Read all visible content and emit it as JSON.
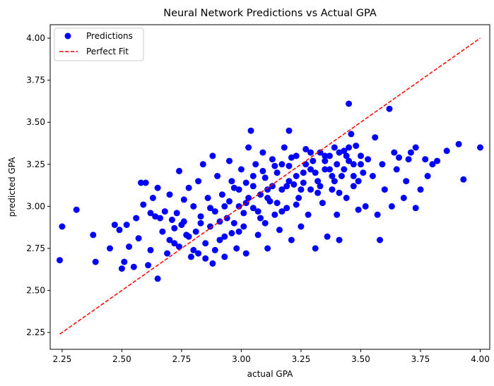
{
  "chart_data": {
    "type": "scatter",
    "title": "Neural Network Predictions vs Actual GPA",
    "xlabel": "actual GPA",
    "ylabel": "predicted GPA",
    "xlim": [
      2.2,
      4.04
    ],
    "ylim": [
      2.15,
      4.08
    ],
    "x_ticks": [
      "2.25",
      "2.50",
      "2.75",
      "3.00",
      "3.25",
      "3.50",
      "3.75",
      "4.00"
    ],
    "y_ticks": [
      "2.25",
      "2.50",
      "2.75",
      "3.00",
      "3.25",
      "3.50",
      "3.75",
      "4.00"
    ],
    "grid": false,
    "legend_placement": "top-left",
    "legend": [
      "Predictions",
      "Perfect Fit"
    ],
    "perfect_fit": {
      "x": [
        2.24,
        4.0
      ],
      "y": [
        2.24,
        4.0
      ],
      "color": "#ff0000",
      "style": "dashed"
    },
    "point_color": "#0000ff",
    "series": [
      {
        "name": "Predictions",
        "points": [
          [
            2.24,
            2.68
          ],
          [
            2.25,
            2.88
          ],
          [
            2.31,
            2.98
          ],
          [
            2.38,
            2.83
          ],
          [
            2.39,
            2.67
          ],
          [
            2.45,
            2.75
          ],
          [
            2.47,
            2.89
          ],
          [
            2.49,
            2.86
          ],
          [
            2.5,
            2.63
          ],
          [
            2.51,
            2.67
          ],
          [
            2.52,
            2.89
          ],
          [
            2.53,
            2.76
          ],
          [
            2.55,
            2.64
          ],
          [
            2.56,
            2.93
          ],
          [
            2.57,
            2.81
          ],
          [
            2.58,
            3.14
          ],
          [
            2.59,
            3.01
          ],
          [
            2.6,
            3.14
          ],
          [
            2.61,
            2.65
          ],
          [
            2.62,
            2.74
          ],
          [
            2.62,
            2.96
          ],
          [
            2.63,
            3.05
          ],
          [
            2.64,
            2.94
          ],
          [
            2.65,
            2.57
          ],
          [
            2.65,
            3.11
          ],
          [
            2.66,
            2.93
          ],
          [
            2.67,
            2.85
          ],
          [
            2.68,
            2.97
          ],
          [
            2.69,
            2.72
          ],
          [
            2.7,
            3.07
          ],
          [
            2.71,
            2.92
          ],
          [
            2.72,
            2.78
          ],
          [
            2.73,
            2.96
          ],
          [
            2.74,
            3.21
          ],
          [
            2.75,
            2.89
          ],
          [
            2.76,
            3.04
          ],
          [
            2.77,
            2.83
          ],
          [
            2.78,
            3.11
          ],
          [
            2.79,
            2.7
          ],
          [
            2.8,
            3.0
          ],
          [
            2.81,
            2.85
          ],
          [
            2.82,
            3.15
          ],
          [
            2.82,
            2.72
          ],
          [
            2.83,
            2.94
          ],
          [
            2.84,
            3.25
          ],
          [
            2.85,
            2.78
          ],
          [
            2.86,
            3.05
          ],
          [
            2.87,
            2.88
          ],
          [
            2.88,
            3.3
          ],
          [
            2.88,
            2.66
          ],
          [
            2.89,
            2.97
          ],
          [
            2.9,
            3.18
          ],
          [
            2.91,
            2.8
          ],
          [
            2.92,
            3.07
          ],
          [
            2.93,
            2.7
          ],
          [
            2.94,
            2.93
          ],
          [
            2.95,
            3.27
          ],
          [
            2.96,
            2.84
          ],
          [
            2.97,
            3.11
          ],
          [
            2.98,
            2.75
          ],
          [
            2.99,
            3.0
          ],
          [
            3.0,
            3.22
          ],
          [
            3.01,
            2.88
          ],
          [
            3.02,
            3.14
          ],
          [
            3.02,
            2.72
          ],
          [
            3.03,
            3.35
          ],
          [
            3.04,
            3.45
          ],
          [
            3.05,
            2.99
          ],
          [
            3.06,
            3.25
          ],
          [
            3.07,
            2.83
          ],
          [
            3.08,
            3.07
          ],
          [
            3.09,
            3.32
          ],
          [
            3.1,
            2.9
          ],
          [
            3.1,
            3.17
          ],
          [
            3.11,
            2.75
          ],
          [
            3.12,
            3.03
          ],
          [
            3.13,
            3.28
          ],
          [
            3.14,
            2.95
          ],
          [
            3.15,
            3.2
          ],
          [
            3.16,
            2.86
          ],
          [
            3.17,
            3.1
          ],
          [
            3.18,
            3.35
          ],
          [
            3.19,
            2.99
          ],
          [
            3.2,
            3.45
          ],
          [
            3.2,
            3.24
          ],
          [
            3.21,
            2.8
          ],
          [
            3.22,
            3.13
          ],
          [
            3.23,
            3.3
          ],
          [
            3.24,
            3.05
          ],
          [
            3.25,
            2.88
          ],
          [
            3.26,
            3.2
          ],
          [
            3.27,
            3.34
          ],
          [
            3.28,
            2.95
          ],
          [
            3.29,
            3.1
          ],
          [
            3.3,
            3.27
          ],
          [
            3.31,
            2.75
          ],
          [
            3.32,
            3.15
          ],
          [
            3.33,
            3.32
          ],
          [
            3.34,
            3.02
          ],
          [
            3.35,
            3.22
          ],
          [
            3.36,
            2.82
          ],
          [
            3.37,
            3.3
          ],
          [
            3.38,
            3.1
          ],
          [
            3.39,
            3.35
          ],
          [
            3.4,
            2.95
          ],
          [
            3.4,
            3.25
          ],
          [
            3.41,
            2.8
          ],
          [
            3.42,
            3.18
          ],
          [
            3.43,
            3.33
          ],
          [
            3.44,
            3.05
          ],
          [
            3.45,
            3.61
          ],
          [
            3.45,
            3.27
          ],
          [
            3.46,
            3.43
          ],
          [
            3.47,
            3.12
          ],
          [
            3.48,
            3.36
          ],
          [
            3.49,
            2.98
          ],
          [
            3.5,
            3.3
          ],
          [
            3.51,
            3.2
          ],
          [
            3.52,
            3.0
          ],
          [
            3.53,
            3.28
          ],
          [
            3.55,
            3.18
          ],
          [
            3.56,
            3.41
          ],
          [
            3.57,
            2.95
          ],
          [
            3.58,
            2.8
          ],
          [
            3.59,
            3.25
          ],
          [
            3.6,
            3.1
          ],
          [
            3.62,
            3.58
          ],
          [
            3.63,
            3.0
          ],
          [
            3.64,
            3.32
          ],
          [
            3.65,
            3.22
          ],
          [
            3.66,
            3.29
          ],
          [
            3.68,
            3.05
          ],
          [
            3.69,
            3.15
          ],
          [
            3.7,
            3.28
          ],
          [
            3.71,
            3.32
          ],
          [
            3.73,
            2.99
          ],
          [
            3.73,
            3.35
          ],
          [
            3.75,
            3.1
          ],
          [
            3.77,
            3.28
          ],
          [
            3.78,
            3.18
          ],
          [
            3.8,
            3.25
          ],
          [
            3.82,
            3.27
          ],
          [
            3.86,
            3.33
          ],
          [
            3.91,
            3.37
          ],
          [
            3.93,
            3.16
          ],
          [
            4.0,
            3.35
          ],
          [
            2.7,
            2.8
          ],
          [
            2.72,
            2.87
          ],
          [
            2.74,
            2.76
          ],
          [
            2.76,
            2.91
          ],
          [
            2.78,
            2.82
          ],
          [
            2.8,
            2.74
          ],
          [
            2.83,
            2.9
          ],
          [
            2.85,
            2.69
          ],
          [
            2.87,
            2.99
          ],
          [
            2.89,
            2.74
          ],
          [
            2.91,
            2.91
          ],
          [
            2.93,
            2.82
          ],
          [
            2.95,
            3.03
          ],
          [
            2.97,
            2.9
          ],
          [
            2.99,
            3.1
          ],
          [
            3.01,
            2.96
          ],
          [
            3.03,
            3.05
          ],
          [
            3.05,
            3.12
          ],
          [
            3.07,
            2.97
          ],
          [
            3.09,
            3.21
          ],
          [
            3.11,
            3.05
          ],
          [
            3.13,
            3.12
          ],
          [
            3.15,
            3.02
          ],
          [
            3.17,
            3.25
          ],
          [
            3.19,
            3.12
          ],
          [
            3.21,
            3.29
          ],
          [
            3.23,
            3.18
          ],
          [
            3.25,
            3.1
          ],
          [
            3.27,
            3.25
          ],
          [
            3.29,
            3.32
          ],
          [
            3.31,
            3.2
          ],
          [
            3.33,
            3.12
          ],
          [
            3.35,
            3.3
          ],
          [
            3.37,
            3.22
          ],
          [
            3.39,
            3.15
          ],
          [
            3.41,
            3.32
          ],
          [
            3.43,
            3.22
          ],
          [
            3.45,
            3.35
          ],
          [
            3.47,
            3.25
          ],
          [
            3.49,
            3.15
          ],
          [
            2.93,
            3.0
          ],
          [
            2.96,
            3.15
          ],
          [
            2.99,
            2.85
          ],
          [
            3.02,
            3.02
          ],
          [
            3.05,
            3.18
          ],
          [
            3.08,
            2.93
          ],
          [
            3.11,
            3.1
          ],
          [
            3.14,
            3.24
          ],
          [
            3.17,
            2.97
          ],
          [
            3.2,
            3.15
          ],
          [
            3.23,
            3.01
          ],
          [
            3.26,
            3.14
          ],
          [
            3.29,
            3.22
          ],
          [
            3.32,
            3.08
          ],
          [
            3.35,
            3.27
          ],
          [
            3.38,
            3.18
          ],
          [
            3.41,
            3.08
          ],
          [
            3.44,
            3.3
          ],
          [
            3.47,
            3.18
          ],
          [
            3.5,
            3.25
          ]
        ]
      }
    ]
  }
}
